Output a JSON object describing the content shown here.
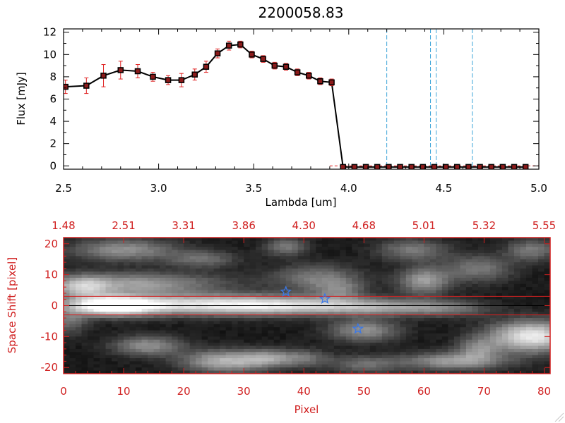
{
  "chart_data": [
    {
      "type": "line",
      "title": "2200058.83",
      "xlabel": "Lambda [um]",
      "ylabel": "Flux [mJy]",
      "xlim": [
        2.5,
        5.0
      ],
      "ylim": [
        -0.3,
        12.3
      ],
      "x_ticks": [
        "2.5",
        "3.0",
        "3.5",
        "4.0",
        "4.5",
        "5.0"
      ],
      "y_ticks": [
        "0",
        "2",
        "4",
        "6",
        "8",
        "10",
        "12"
      ],
      "series": [
        {
          "x": [
            2.51,
            2.62,
            2.71,
            2.8,
            2.89,
            2.97,
            3.05,
            3.12,
            3.19,
            3.25,
            3.31,
            3.37,
            3.43,
            3.49,
            3.55,
            3.61,
            3.67,
            3.73,
            3.79,
            3.85,
            3.91,
            3.97,
            4.03,
            4.09,
            4.15,
            4.21,
            4.27,
            4.33,
            4.39,
            4.45,
            4.51,
            4.57,
            4.63,
            4.69,
            4.75,
            4.81,
            4.87,
            4.93
          ],
          "y": [
            7.1,
            7.2,
            8.1,
            8.6,
            8.5,
            8.0,
            7.7,
            7.7,
            8.2,
            8.9,
            10.1,
            10.8,
            10.9,
            10.0,
            9.6,
            9.0,
            8.9,
            8.4,
            8.1,
            7.6,
            7.5,
            -0.1,
            -0.1,
            -0.1,
            -0.1,
            -0.1,
            -0.1,
            -0.1,
            -0.1,
            -0.1,
            -0.1,
            -0.1,
            -0.1,
            -0.1,
            -0.1,
            -0.1,
            -0.1,
            -0.1
          ],
          "err": [
            0.6,
            0.7,
            1.0,
            0.8,
            0.6,
            0.4,
            0.4,
            0.6,
            0.5,
            0.5,
            0.4,
            0.4,
            0.3,
            0.3,
            0.3,
            0.3,
            0.3,
            0.3,
            0.3,
            0.3,
            0.3,
            0,
            0,
            0,
            0,
            0,
            0,
            0,
            0,
            0,
            0,
            0,
            0,
            0,
            0,
            0,
            0,
            0
          ]
        }
      ],
      "vlines_x": [
        4.2,
        4.43,
        4.46,
        4.65
      ],
      "zero_line_y": 0,
      "grid": false,
      "colors": {
        "line": "#000000",
        "marker": "#8b1a1a",
        "error_bars": "#e02020",
        "vlines": "#3aa3d8",
        "zero_line": "#e02020"
      }
    },
    {
      "type": "heatmap",
      "xlabel": "Pixel",
      "ylabel": "Space Shift [pixel]",
      "xlim": [
        0,
        81
      ],
      "ylim": [
        -22,
        22
      ],
      "x_ticks": [
        "0",
        "10",
        "20",
        "30",
        "40",
        "50",
        "60",
        "70",
        "80"
      ],
      "y_ticks": [
        "-20",
        "-10",
        "0",
        "10",
        "20"
      ],
      "top_ticks": [
        {
          "pixel": 0,
          "label": "1.48"
        },
        {
          "pixel": 10,
          "label": "2.51"
        },
        {
          "pixel": 20,
          "label": "3.31"
        },
        {
          "pixel": 30,
          "label": "3.86"
        },
        {
          "pixel": 40,
          "label": "4.30"
        },
        {
          "pixel": 50,
          "label": "4.68"
        },
        {
          "pixel": 60,
          "label": "5.01"
        },
        {
          "pixel": 70,
          "label": "5.32"
        },
        {
          "pixel": 80,
          "label": "5.55"
        }
      ],
      "aperture_lines_y": [
        3,
        -3
      ],
      "trace_y": 0,
      "stars": [
        {
          "x": 37,
          "y": 4.5
        },
        {
          "x": 43.5,
          "y": 2.2
        },
        {
          "x": 49,
          "y": -7.5
        }
      ],
      "blobs": [
        {
          "x": 8,
          "y": 0,
          "sx": 5,
          "sy": 2.2,
          "a": 1.0
        },
        {
          "x": 22,
          "y": 0.3,
          "sx": 11,
          "sy": 2.3,
          "a": 0.7
        },
        {
          "x": 38,
          "y": 0,
          "sx": 9,
          "sy": 2.1,
          "a": 0.55
        },
        {
          "x": 53,
          "y": -0.5,
          "sx": 7,
          "sy": 1.9,
          "a": 0.42
        },
        {
          "x": 64,
          "y": -1,
          "sx": 5,
          "sy": 1.8,
          "a": 0.28
        },
        {
          "x": 12,
          "y": 7,
          "sx": 10,
          "sy": 2.5,
          "a": 0.5
        },
        {
          "x": 3,
          "y": 6,
          "sx": 3,
          "sy": 2.5,
          "a": 0.45
        },
        {
          "x": 10,
          "y": 18,
          "sx": 6,
          "sy": 2.5,
          "a": 0.45
        },
        {
          "x": 23,
          "y": 15,
          "sx": 4,
          "sy": 2,
          "a": 0.3
        },
        {
          "x": 37,
          "y": 19,
          "sx": 2.5,
          "sy": 2,
          "a": 0.35
        },
        {
          "x": 42,
          "y": 9,
          "sx": 5,
          "sy": 3,
          "a": 0.35
        },
        {
          "x": 46,
          "y": 5,
          "sx": 3,
          "sy": 2.5,
          "a": 0.3
        },
        {
          "x": 58,
          "y": 18,
          "sx": 4,
          "sy": 2.5,
          "a": 0.35
        },
        {
          "x": 60,
          "y": 8,
          "sx": 3,
          "sy": 3,
          "a": 0.5
        },
        {
          "x": 69,
          "y": 12,
          "sx": 4,
          "sy": 3,
          "a": 0.35
        },
        {
          "x": 78,
          "y": 18,
          "sx": 3,
          "sy": 2.5,
          "a": 0.35
        },
        {
          "x": 14,
          "y": -13,
          "sx": 4,
          "sy": 2.2,
          "a": 0.45
        },
        {
          "x": 27,
          "y": -18,
          "sx": 5,
          "sy": 2.5,
          "a": 0.6
        },
        {
          "x": 34,
          "y": -17,
          "sx": 3,
          "sy": 2,
          "a": 0.35
        },
        {
          "x": 40,
          "y": -17,
          "sx": 3,
          "sy": 2,
          "a": 0.3
        },
        {
          "x": 50,
          "y": -8,
          "sx": 4,
          "sy": 2.5,
          "a": 0.45
        },
        {
          "x": 69,
          "y": -14,
          "sx": 2.5,
          "sy": 2.5,
          "a": 0.35
        },
        {
          "x": 78,
          "y": -10,
          "sx": 5,
          "sy": 3.5,
          "a": 0.85
        },
        {
          "x": 65,
          "y": -18,
          "sx": 6,
          "sy": 2,
          "a": 0.5
        },
        {
          "x": 50,
          "y": -19,
          "sx": 4,
          "sy": 2,
          "a": 0.3
        },
        {
          "x": 1,
          "y": -5,
          "sx": 2,
          "sy": 3,
          "a": 0.3
        }
      ],
      "colors": {
        "frame": "#d02020",
        "stars": "#3a78e8",
        "aperture": "#d02020",
        "trace": "#000000"
      }
    }
  ]
}
